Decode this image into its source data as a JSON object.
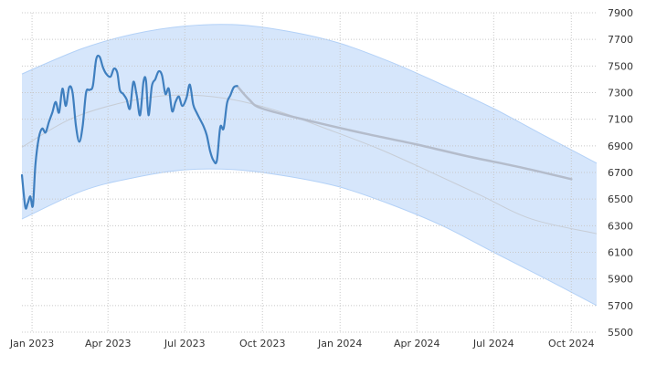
{
  "chart_data": {
    "type": "line",
    "x_tick_labels": [
      "Jan 2023",
      "Apr 2023",
      "Jul 2023",
      "Oct 2023",
      "Jan 2024",
      "Apr 2024",
      "Jul 2024",
      "Oct 2024"
    ],
    "y_ticks": [
      7900,
      7700,
      7500,
      7300,
      7100,
      6900,
      6700,
      6500,
      6300,
      6100,
      5900,
      5700,
      5500
    ],
    "ylim": [
      5500,
      7900
    ],
    "xlim": [
      "2022-12-20",
      "2024-10-31"
    ],
    "grid": true,
    "y_axis_position": "right",
    "colors": {
      "actual": "#3f7fbf",
      "forecast": "#b4bccb",
      "band_fill": "#d6e6fb",
      "band_edge": "#b3d1f7",
      "trend": "#c7cdd6",
      "grid": "#c8c8c8"
    },
    "series": [
      {
        "values_role": "actual",
        "points": [
          [
            "2022-12-20",
            6680
          ],
          [
            "2022-12-24",
            6440
          ],
          [
            "2022-12-27",
            6470
          ],
          [
            "2022-12-30",
            6520
          ],
          [
            "2023-01-02",
            6450
          ],
          [
            "2023-01-05",
            6760
          ],
          [
            "2023-01-09",
            6960
          ],
          [
            "2023-01-13",
            7030
          ],
          [
            "2023-01-17",
            7000
          ],
          [
            "2023-01-21",
            7080
          ],
          [
            "2023-01-25",
            7150
          ],
          [
            "2023-01-29",
            7230
          ],
          [
            "2023-02-02",
            7150
          ],
          [
            "2023-02-06",
            7330
          ],
          [
            "2023-02-10",
            7200
          ],
          [
            "2023-02-14",
            7340
          ],
          [
            "2023-02-18",
            7300
          ],
          [
            "2023-02-22",
            7050
          ],
          [
            "2023-02-26",
            6930
          ],
          [
            "2023-03-02",
            7050
          ],
          [
            "2023-03-06",
            7300
          ],
          [
            "2023-03-10",
            7320
          ],
          [
            "2023-03-14",
            7350
          ],
          [
            "2023-03-18",
            7550
          ],
          [
            "2023-03-22",
            7570
          ],
          [
            "2023-03-26",
            7490
          ],
          [
            "2023-03-30",
            7440
          ],
          [
            "2023-04-04",
            7420
          ],
          [
            "2023-04-08",
            7480
          ],
          [
            "2023-04-12",
            7450
          ],
          [
            "2023-04-15",
            7320
          ],
          [
            "2023-04-19",
            7290
          ],
          [
            "2023-04-23",
            7250
          ],
          [
            "2023-04-27",
            7180
          ],
          [
            "2023-05-01",
            7380
          ],
          [
            "2023-05-05",
            7280
          ],
          [
            "2023-05-09",
            7130
          ],
          [
            "2023-05-13",
            7380
          ],
          [
            "2023-05-16",
            7390
          ],
          [
            "2023-05-19",
            7130
          ],
          [
            "2023-05-23",
            7350
          ],
          [
            "2023-05-27",
            7400
          ],
          [
            "2023-05-31",
            7460
          ],
          [
            "2023-06-04",
            7430
          ],
          [
            "2023-06-08",
            7290
          ],
          [
            "2023-06-12",
            7330
          ],
          [
            "2023-06-16",
            7160
          ],
          [
            "2023-06-20",
            7230
          ],
          [
            "2023-06-24",
            7270
          ],
          [
            "2023-06-28",
            7200
          ],
          [
            "2023-07-03",
            7260
          ],
          [
            "2023-07-07",
            7360
          ],
          [
            "2023-07-11",
            7210
          ],
          [
            "2023-07-15",
            7150
          ],
          [
            "2023-07-19",
            7100
          ],
          [
            "2023-07-23",
            7050
          ],
          [
            "2023-07-27",
            6980
          ],
          [
            "2023-07-31",
            6860
          ],
          [
            "2023-08-04",
            6790
          ],
          [
            "2023-08-08",
            6790
          ],
          [
            "2023-08-12",
            7040
          ],
          [
            "2023-08-16",
            7030
          ],
          [
            "2023-08-20",
            7220
          ],
          [
            "2023-08-24",
            7280
          ],
          [
            "2023-08-28",
            7340
          ],
          [
            "2023-09-01",
            7350
          ]
        ]
      },
      {
        "values_role": "forecast",
        "points": [
          [
            "2023-09-01",
            7350
          ],
          [
            "2023-09-15",
            7250
          ],
          [
            "2023-10-01",
            7180
          ],
          [
            "2023-12-01",
            7080
          ],
          [
            "2024-02-01",
            6990
          ],
          [
            "2024-04-01",
            6910
          ],
          [
            "2024-06-01",
            6820
          ],
          [
            "2024-08-01",
            6740
          ],
          [
            "2024-10-01",
            6650
          ]
        ]
      },
      {
        "values_role": "trend",
        "points": [
          [
            "2022-12-20",
            6890
          ],
          [
            "2023-02-15",
            7100
          ],
          [
            "2023-04-15",
            7220
          ],
          [
            "2023-06-15",
            7280
          ],
          [
            "2023-08-15",
            7260
          ],
          [
            "2023-10-15",
            7170
          ],
          [
            "2023-12-15",
            7030
          ],
          [
            "2024-02-15",
            6880
          ],
          [
            "2024-04-15",
            6710
          ],
          [
            "2024-06-15",
            6530
          ],
          [
            "2024-08-15",
            6350
          ],
          [
            "2024-10-31",
            6240
          ]
        ]
      },
      {
        "values_role": "band_upper",
        "points": [
          [
            "2022-12-20",
            7440
          ],
          [
            "2023-03-01",
            7630
          ],
          [
            "2023-05-01",
            7740
          ],
          [
            "2023-07-01",
            7800
          ],
          [
            "2023-09-01",
            7810
          ],
          [
            "2023-11-01",
            7760
          ],
          [
            "2024-01-01",
            7670
          ],
          [
            "2024-03-01",
            7530
          ],
          [
            "2024-05-01",
            7360
          ],
          [
            "2024-07-01",
            7180
          ],
          [
            "2024-09-01",
            6970
          ],
          [
            "2024-10-31",
            6770
          ]
        ]
      },
      {
        "values_role": "band_lower",
        "points": [
          [
            "2022-12-20",
            6350
          ],
          [
            "2023-03-01",
            6560
          ],
          [
            "2023-05-01",
            6660
          ],
          [
            "2023-07-01",
            6720
          ],
          [
            "2023-09-01",
            6720
          ],
          [
            "2023-11-01",
            6670
          ],
          [
            "2024-01-01",
            6590
          ],
          [
            "2024-03-01",
            6460
          ],
          [
            "2024-05-01",
            6300
          ],
          [
            "2024-07-01",
            6100
          ],
          [
            "2024-09-01",
            5900
          ],
          [
            "2024-10-31",
            5700
          ]
        ]
      }
    ]
  }
}
